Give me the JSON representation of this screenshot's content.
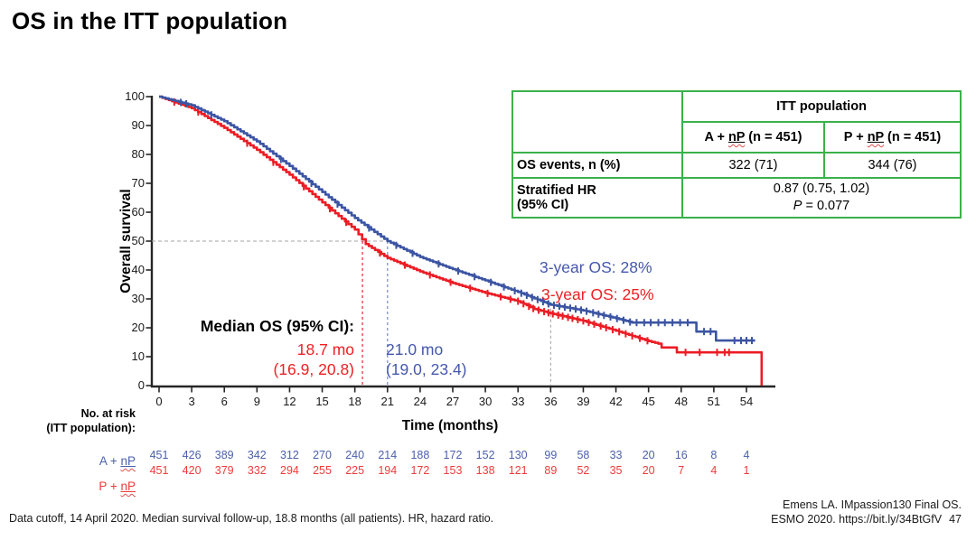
{
  "title": "OS in the ITT population",
  "table": {
    "group_header": "ITT population",
    "arm_a": {
      "prefix": "A + ",
      "underlined": "nP",
      "suffix": " (n = 451)"
    },
    "arm_p": {
      "prefix": "P + ",
      "underlined": "nP",
      "suffix": " (n = 451)"
    },
    "os_events_label": "OS events, n (%)",
    "os_events_a": "322 (71)",
    "os_events_p": "344 (76)",
    "hr_label_line1": "Stratified HR",
    "hr_label_line2": "(95% CI)",
    "hr_value": "0.87 (0.75, 1.02)",
    "p_symbol": "P",
    "p_value_rest": " = 0.077"
  },
  "annotations": {
    "median_title": "Median OS (95% CI):",
    "median_red_value": "18.7 mo",
    "median_red_ci": "(16.9, 20.8)",
    "median_blue_value": "21.0 mo",
    "median_blue_ci": "(19.0, 23.4)",
    "three_year_blue": "3-year OS: 28%",
    "three_year_red": "3-year OS: 25%"
  },
  "chart_data": {
    "type": "line",
    "subtype": "kaplan-meier",
    "title": "",
    "xlabel": "Time (months)",
    "ylabel": "Overall survival",
    "xlim": [
      0,
      57
    ],
    "ylim": [
      0,
      100
    ],
    "x_ticks": [
      0,
      3,
      6,
      9,
      12,
      15,
      18,
      21,
      24,
      27,
      30,
      33,
      36,
      39,
      42,
      45,
      48,
      51,
      54
    ],
    "y_ticks": [
      0,
      10,
      20,
      30,
      40,
      50,
      60,
      70,
      80,
      90,
      100
    ],
    "grid": false,
    "legend_position": "none",
    "reference_lines": {
      "survival_50_pct": 50,
      "median_red_months": 18.7,
      "median_blue_months": 21.0,
      "three_year_months": 36
    },
    "series": [
      {
        "name": "A + nP",
        "color": "#3B54A3",
        "median_os_months": 21.0,
        "median_os_ci": [
          19.0,
          23.4
        ],
        "three_year_os_pct": 28,
        "km_points": [
          [
            0,
            100
          ],
          [
            3,
            97
          ],
          [
            6,
            91.5
          ],
          [
            9,
            84.5
          ],
          [
            12,
            76
          ],
          [
            15,
            67
          ],
          [
            18,
            58
          ],
          [
            21,
            50
          ],
          [
            24,
            44.5
          ],
          [
            27,
            40.3
          ],
          [
            30,
            36.4
          ],
          [
            33,
            32.4
          ],
          [
            36,
            28
          ],
          [
            39,
            26
          ],
          [
            42,
            23.3
          ],
          [
            43.5,
            21.8
          ],
          [
            49.4,
            21.8
          ],
          [
            49.4,
            18.7
          ],
          [
            51.2,
            18.7
          ],
          [
            51.2,
            15.6
          ],
          [
            54.8,
            15.6
          ]
        ],
        "censor_months": [
          2.0,
          2.5,
          4.8,
          11.2,
          14.0,
          16.4,
          19.3,
          21.8,
          23.3,
          25.7,
          27.5,
          29.0,
          30.5,
          31.7,
          32.7,
          33.3,
          33.8,
          34.3,
          34.8,
          35.3,
          35.8,
          36.3,
          36.8,
          37.3,
          37.8,
          38.3,
          38.8,
          39.3,
          39.9,
          40.4,
          40.9,
          41.5,
          42.1,
          42.7,
          43.3,
          43.9,
          44.6,
          45.2,
          45.9,
          46.5,
          47.2,
          47.9,
          48.6,
          50.1,
          50.7,
          52.9,
          53.5,
          54.0,
          54.5
        ]
      },
      {
        "name": "P + nP",
        "color": "#EC1C24",
        "median_os_months": 18.7,
        "median_os_ci": [
          16.9,
          20.8
        ],
        "three_year_os_pct": 25,
        "km_points": [
          [
            0,
            100
          ],
          [
            3,
            96
          ],
          [
            6,
            89.2
          ],
          [
            9,
            81.6
          ],
          [
            12,
            73
          ],
          [
            15,
            63.4
          ],
          [
            18,
            54
          ],
          [
            19,
            49
          ],
          [
            21,
            44.2
          ],
          [
            24,
            39.5
          ],
          [
            27,
            35.5
          ],
          [
            30,
            32.1
          ],
          [
            33,
            29.2
          ],
          [
            33.8,
            27.8
          ],
          [
            34.5,
            26.5
          ],
          [
            36,
            25
          ],
          [
            39,
            22.4
          ],
          [
            42,
            19
          ],
          [
            45,
            15.4
          ],
          [
            46.2,
            14.2
          ],
          [
            46.2,
            13.2
          ],
          [
            47.6,
            13.2
          ],
          [
            47.6,
            11.5
          ],
          [
            55.4,
            11.5
          ],
          [
            55.4,
            0
          ]
        ],
        "censor_months": [
          1.4,
          3.6,
          8.1,
          10.5,
          13.3,
          15.7,
          17.2,
          20.3,
          22.6,
          24.9,
          26.8,
          28.6,
          30.2,
          31.4,
          32.3,
          33.0,
          33.5,
          34.0,
          34.4,
          34.9,
          35.4,
          35.8,
          36.2,
          36.7,
          37.1,
          37.6,
          38.0,
          38.5,
          39.0,
          39.5,
          40.0,
          40.6,
          41.1,
          41.7,
          42.3,
          42.9,
          43.5,
          44.2,
          44.9,
          48.4,
          49.7,
          51.3,
          52.0,
          52.4
        ]
      }
    ]
  },
  "at_risk": {
    "label_line1": "No. at risk",
    "label_line2": "(ITT population):",
    "rows": [
      {
        "arm_prefix": "A + ",
        "arm_underlined": "nP",
        "color": "#4C60AC",
        "values": [
          "451",
          "426",
          "389",
          "342",
          "312",
          "270",
          "240",
          "214",
          "188",
          "172",
          "152",
          "130",
          "99",
          "58",
          "33",
          "20",
          "16",
          "8",
          "4"
        ]
      },
      {
        "arm_prefix": "P + ",
        "arm_underlined": "nP",
        "color": "#EE3B3B",
        "values": [
          "451",
          "420",
          "379",
          "332",
          "294",
          "255",
          "225",
          "194",
          "172",
          "153",
          "138",
          "121",
          "89",
          "52",
          "35",
          "20",
          "7",
          "4",
          "1"
        ]
      }
    ]
  },
  "footer": {
    "left": "Data cutoff, 14 April 2020. Median survival follow-up, 18.8 months (all patients). HR, hazard ratio.",
    "right_line1": "Emens LA. IMpassion130 Final OS.",
    "right_line2": "ESMO 2020. https://bit.ly/34BtGfV",
    "page_number": "47"
  }
}
